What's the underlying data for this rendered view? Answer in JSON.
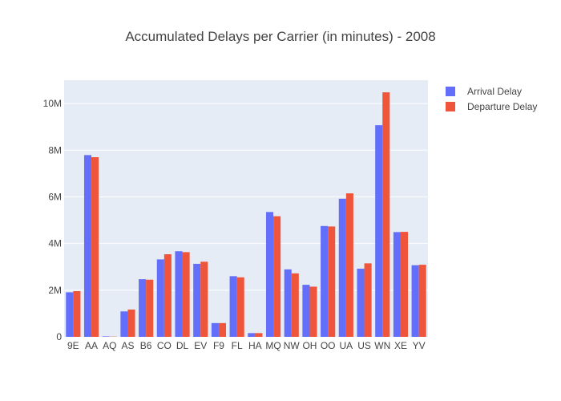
{
  "chart_data": {
    "type": "bar",
    "title": "Accumulated Delays per Carrier (in minutes) - 2008",
    "xlabel": "",
    "ylabel": "",
    "categories": [
      "9E",
      "AA",
      "AQ",
      "AS",
      "B6",
      "CO",
      "DL",
      "EV",
      "F9",
      "FL",
      "HA",
      "MQ",
      "NW",
      "OH",
      "OO",
      "UA",
      "US",
      "WN",
      "XE",
      "YV"
    ],
    "series": [
      {
        "name": "Arrival Delay",
        "color": "#636efa",
        "values": [
          1910000,
          7790000,
          20000,
          1090000,
          2470000,
          3320000,
          3670000,
          3130000,
          590000,
          2600000,
          160000,
          5350000,
          2890000,
          2230000,
          4750000,
          5920000,
          2920000,
          9070000,
          4490000,
          3070000
        ]
      },
      {
        "name": "Departure Delay",
        "color": "#ef553b",
        "values": [
          1960000,
          7700000,
          10000,
          1170000,
          2450000,
          3540000,
          3630000,
          3220000,
          590000,
          2550000,
          160000,
          5170000,
          2720000,
          2150000,
          4730000,
          6150000,
          3150000,
          10480000,
          4500000,
          3090000
        ]
      }
    ],
    "ylim": [
      0,
      11000000
    ],
    "yticks": [
      0,
      2000000,
      4000000,
      6000000,
      8000000,
      10000000
    ],
    "ytick_labels": [
      "0",
      "2M",
      "4M",
      "6M",
      "8M",
      "10M"
    ],
    "grid": true,
    "legend_position": "top-right",
    "plot_background": "#e5ecf6",
    "gridline_color": "#ffffff"
  }
}
